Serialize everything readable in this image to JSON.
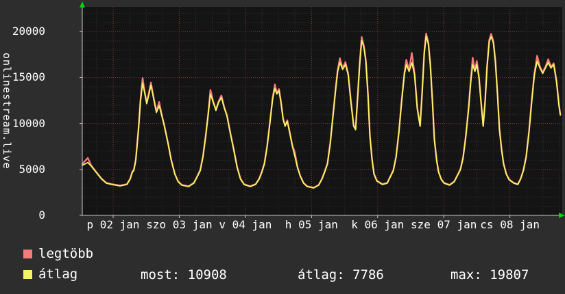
{
  "footer": {
    "most_label": "most:",
    "most_value": "10908",
    "atlag_label": "átlag:",
    "atlag_value": "7786",
    "max_label": "max:",
    "max_value": "19807"
  },
  "chart_data": {
    "type": "line",
    "ylabel": "onlinestream.live",
    "xlabel": "",
    "xlim": [
      0,
      174.2
    ],
    "ylim": [
      0,
      22700
    ],
    "x_unit": "hours from 01 jan 12:00",
    "grid": true,
    "legend_position": "bottom-left",
    "y_ticks": [
      0,
      5000,
      10000,
      15000,
      20000
    ],
    "x_ticks": [
      {
        "t": 11.2,
        "label": "p 02 jan"
      },
      {
        "t": 35.2,
        "label": "szo 03 jan"
      },
      {
        "t": 59.2,
        "label": "v 04 jan"
      },
      {
        "t": 83.2,
        "label": "h 05 jan"
      },
      {
        "t": 107.2,
        "label": "k 06 jan"
      },
      {
        "t": 131.2,
        "label": "sze 07 jan"
      },
      {
        "t": 155.2,
        "label": "cs 08 jan"
      }
    ],
    "series": [
      {
        "name": "legtöbb",
        "color": "#f57a7a",
        "width": 2.4
      },
      {
        "name": "átlag",
        "color": "#f5f562",
        "width": 1.8
      }
    ],
    "colors": {
      "plot_bg": "#141414",
      "grid_minor": "#303030",
      "grid_major": "#7c3e3e",
      "axis": "#c8c8c8",
      "arrow": "#00d800",
      "text": "#ffffff",
      "background": "#2d2d2d"
    },
    "points_format": [
      "t_hours",
      "legtöbb",
      "átlag"
    ],
    "points": [
      [
        0.0,
        5600,
        5450
      ],
      [
        2.0,
        6250,
        5750
      ],
      [
        3.2,
        5450,
        5370
      ],
      [
        5.0,
        4750,
        4700
      ],
      [
        7.0,
        4000,
        3950
      ],
      [
        8.7,
        3550,
        3500
      ],
      [
        10.7,
        3400,
        3360
      ],
      [
        13.7,
        3250,
        3200
      ],
      [
        16.2,
        3400,
        3360
      ],
      [
        17.4,
        4000,
        3950
      ],
      [
        18.2,
        4800,
        4700
      ],
      [
        18.7,
        4950,
        4850
      ],
      [
        19.4,
        6050,
        5970
      ],
      [
        20.4,
        9450,
        9320
      ],
      [
        21.1,
        12500,
        12300
      ],
      [
        21.9,
        14950,
        14400
      ],
      [
        22.6,
        13500,
        13400
      ],
      [
        23.4,
        12250,
        12150
      ],
      [
        24.1,
        13200,
        13050
      ],
      [
        24.9,
        14450,
        14170
      ],
      [
        25.9,
        12800,
        12680
      ],
      [
        26.9,
        11300,
        11190
      ],
      [
        27.9,
        12350,
        11930
      ],
      [
        28.9,
        10900,
        10800
      ],
      [
        29.8,
        9780,
        9690
      ],
      [
        31.1,
        7900,
        7830
      ],
      [
        32.3,
        6030,
        5970
      ],
      [
        33.6,
        4520,
        4470
      ],
      [
        34.8,
        3700,
        3650
      ],
      [
        36.1,
        3320,
        3280
      ],
      [
        38.6,
        3170,
        3130
      ],
      [
        40.5,
        3540,
        3500
      ],
      [
        41.8,
        4300,
        4250
      ],
      [
        42.8,
        4950,
        4850
      ],
      [
        43.8,
        6420,
        6340
      ],
      [
        44.8,
        8680,
        8580
      ],
      [
        45.8,
        11320,
        11190
      ],
      [
        46.5,
        13650,
        13200
      ],
      [
        47.5,
        12420,
        12300
      ],
      [
        48.5,
        11520,
        11410
      ],
      [
        49.5,
        12430,
        12300
      ],
      [
        50.5,
        13050,
        12830
      ],
      [
        51.5,
        11820,
        11710
      ],
      [
        52.5,
        10900,
        10800
      ],
      [
        53.7,
        9040,
        8950
      ],
      [
        55.0,
        7150,
        7080
      ],
      [
        56.2,
        5280,
        5220
      ],
      [
        57.4,
        4000,
        3950
      ],
      [
        58.7,
        3400,
        3360
      ],
      [
        60.9,
        3170,
        3130
      ],
      [
        62.9,
        3400,
        3360
      ],
      [
        64.2,
        4000,
        3950
      ],
      [
        65.2,
        4800,
        4700
      ],
      [
        66.1,
        5660,
        5590
      ],
      [
        67.1,
        7550,
        7460
      ],
      [
        68.1,
        10200,
        10070
      ],
      [
        69.1,
        12830,
        12680
      ],
      [
        69.9,
        14250,
        13800
      ],
      [
        70.6,
        13320,
        13200
      ],
      [
        71.4,
        13750,
        13570
      ],
      [
        72.1,
        12420,
        12300
      ],
      [
        72.9,
        10540,
        10440
      ],
      [
        73.6,
        9780,
        9690
      ],
      [
        74.4,
        10360,
        10220
      ],
      [
        75.3,
        9040,
        8950
      ],
      [
        76.3,
        7540,
        7460
      ],
      [
        77.1,
        6940,
        6490
      ],
      [
        78.1,
        5280,
        5220
      ],
      [
        79.1,
        4300,
        4250
      ],
      [
        80.3,
        3540,
        3500
      ],
      [
        81.6,
        3170,
        3130
      ],
      [
        84.0,
        3020,
        2980
      ],
      [
        85.8,
        3320,
        3280
      ],
      [
        87.0,
        4000,
        3950
      ],
      [
        88.0,
        4800,
        4700
      ],
      [
        89.0,
        5670,
        5590
      ],
      [
        90.0,
        7920,
        7830
      ],
      [
        91.0,
        10940,
        10810
      ],
      [
        92.0,
        13960,
        13800
      ],
      [
        92.7,
        15840,
        15660
      ],
      [
        93.5,
        17100,
        16630
      ],
      [
        94.5,
        16000,
        15880
      ],
      [
        95.5,
        16700,
        16410
      ],
      [
        96.5,
        15420,
        15290
      ],
      [
        97.5,
        12430,
        12300
      ],
      [
        98.5,
        9780,
        9690
      ],
      [
        99.2,
        9400,
        9320
      ],
      [
        100.0,
        13200,
        13050
      ],
      [
        100.7,
        16600,
        16410
      ],
      [
        101.4,
        19420,
        19020
      ],
      [
        102.2,
        18450,
        18270
      ],
      [
        102.9,
        16920,
        16780
      ],
      [
        103.7,
        13180,
        13050
      ],
      [
        104.4,
        8680,
        8580
      ],
      [
        105.2,
        6040,
        5970
      ],
      [
        105.9,
        4520,
        4470
      ],
      [
        106.9,
        3780,
        3730
      ],
      [
        108.9,
        3400,
        3360
      ],
      [
        110.7,
        3540,
        3500
      ],
      [
        111.9,
        4300,
        4250
      ],
      [
        112.9,
        4950,
        4850
      ],
      [
        113.9,
        6420,
        6340
      ],
      [
        114.9,
        9060,
        8950
      ],
      [
        115.9,
        12450,
        12300
      ],
      [
        116.9,
        15470,
        15290
      ],
      [
        117.6,
        16930,
        16410
      ],
      [
        118.6,
        15790,
        15660
      ],
      [
        119.6,
        17680,
        16630
      ],
      [
        120.6,
        15430,
        15290
      ],
      [
        121.6,
        11680,
        11560
      ],
      [
        122.6,
        9790,
        9690
      ],
      [
        123.3,
        13200,
        13050
      ],
      [
        124.1,
        17740,
        17530
      ],
      [
        124.8,
        19807,
        19500
      ],
      [
        125.6,
        18830,
        18650
      ],
      [
        126.3,
        16560,
        16410
      ],
      [
        127.1,
        12430,
        12300
      ],
      [
        127.8,
        8290,
        8200
      ],
      [
        128.6,
        6040,
        5970
      ],
      [
        129.3,
        4760,
        4700
      ],
      [
        130.3,
        3930,
        3880
      ],
      [
        131.3,
        3540,
        3500
      ],
      [
        133.3,
        3320,
        3280
      ],
      [
        135.0,
        3700,
        3650
      ],
      [
        136.3,
        4460,
        4400
      ],
      [
        137.3,
        5100,
        5000
      ],
      [
        138.2,
        6270,
        6190
      ],
      [
        139.2,
        8690,
        8580
      ],
      [
        140.2,
        11700,
        11560
      ],
      [
        141.0,
        14720,
        14540
      ],
      [
        141.7,
        17160,
        16410
      ],
      [
        142.5,
        15790,
        15660
      ],
      [
        143.2,
        16800,
        16410
      ],
      [
        144.0,
        15060,
        14920
      ],
      [
        144.7,
        12430,
        12300
      ],
      [
        145.5,
        9790,
        9690
      ],
      [
        146.2,
        12450,
        12300
      ],
      [
        146.9,
        16220,
        16040
      ],
      [
        147.7,
        19080,
        18900
      ],
      [
        148.4,
        19760,
        19460
      ],
      [
        149.2,
        18950,
        18800
      ],
      [
        149.9,
        16920,
        16780
      ],
      [
        150.7,
        13180,
        13050
      ],
      [
        151.4,
        9420,
        9320
      ],
      [
        152.2,
        7160,
        7080
      ],
      [
        152.9,
        5650,
        5590
      ],
      [
        153.9,
        4520,
        4470
      ],
      [
        154.9,
        3930,
        3880
      ],
      [
        156.6,
        3540,
        3500
      ],
      [
        158.1,
        3400,
        3360
      ],
      [
        159.1,
        4000,
        3950
      ],
      [
        160.1,
        4910,
        4850
      ],
      [
        161.1,
        6420,
        6340
      ],
      [
        162.1,
        9060,
        8950
      ],
      [
        163.1,
        12450,
        12300
      ],
      [
        164.1,
        15470,
        15290
      ],
      [
        165.1,
        17380,
        16780
      ],
      [
        166.1,
        16170,
        16040
      ],
      [
        167.1,
        15570,
        15440
      ],
      [
        168.1,
        16170,
        16040
      ],
      [
        169.1,
        17000,
        16630
      ],
      [
        170.1,
        16170,
        16040
      ],
      [
        171.1,
        16550,
        16410
      ],
      [
        172.1,
        14670,
        14540
      ],
      [
        173.0,
        12050,
        11930
      ],
      [
        173.5,
        11020,
        10908
      ]
    ]
  }
}
